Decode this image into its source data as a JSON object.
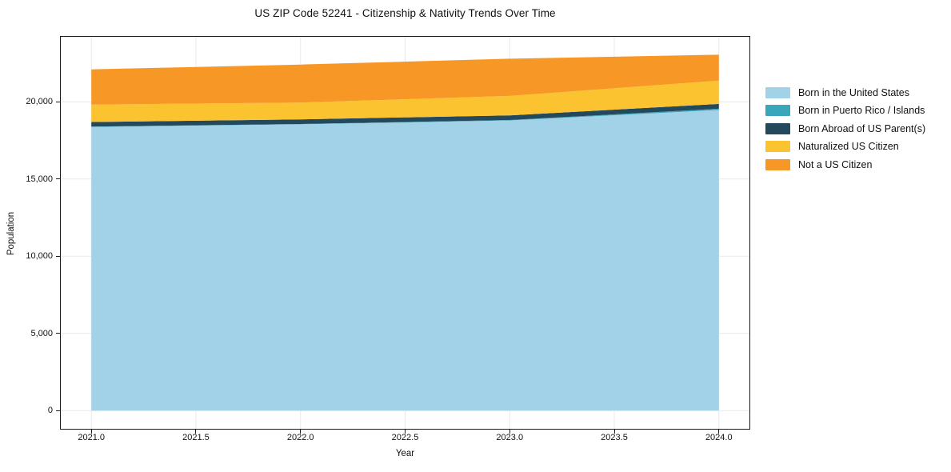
{
  "title": "US ZIP Code 52241 - Citizenship & Nativity Trends Over Time",
  "axes": {
    "x": {
      "label": "Year",
      "tick_labels": [
        "2021.0",
        "2021.5",
        "2022.0",
        "2022.5",
        "2023.0",
        "2023.5",
        "2024.0"
      ],
      "tick_values": [
        2021.0,
        2021.5,
        2022.0,
        2022.5,
        2023.0,
        2023.5,
        2024.0
      ]
    },
    "y": {
      "label": "Population",
      "tick_labels": [
        "0",
        "5,000",
        "10,000",
        "15,000",
        "20,000"
      ],
      "tick_values": [
        0,
        5000,
        10000,
        15000,
        20000
      ]
    }
  },
  "legend": {
    "items": [
      {
        "label": "Born in the United States",
        "color": "#a2d2e8"
      },
      {
        "label": "Born in Puerto Rico / Islands",
        "color": "#39a6bc"
      },
      {
        "label": "Born Abroad of US Parent(s)",
        "color": "#24485c"
      },
      {
        "label": "Naturalized US Citizen",
        "color": "#fcc331"
      },
      {
        "label": "Not a US Citizen",
        "color": "#f79726"
      }
    ]
  },
  "colors": {
    "grid": "#e9e9e9",
    "spine": "#1a1a1a",
    "background": "#ffffff"
  },
  "chart_data": {
    "type": "area",
    "stacked": true,
    "title": "US ZIP Code 52241 - Citizenship & Nativity Trends Over Time",
    "xlabel": "Year",
    "ylabel": "Population",
    "x": [
      2021,
      2022,
      2023,
      2024
    ],
    "series": [
      {
        "name": "Born in the United States",
        "color": "#a2d2e8",
        "values": [
          18370,
          18540,
          18790,
          19470
        ]
      },
      {
        "name": "Born in Puerto Rico / Islands",
        "color": "#39a6bc",
        "values": [
          20,
          20,
          30,
          80
        ]
      },
      {
        "name": "Born Abroad of US Parent(s)",
        "color": "#24485c",
        "values": [
          300,
          300,
          300,
          310
        ]
      },
      {
        "name": "Naturalized US Citizen",
        "color": "#fcc331",
        "values": [
          1130,
          1090,
          1260,
          1510
        ]
      },
      {
        "name": "Not a US Citizen",
        "color": "#f79726",
        "values": [
          2280,
          2460,
          2410,
          1680
        ]
      }
    ],
    "totals": [
      22100,
      22410,
      22790,
      23050
    ],
    "xlim": [
      2020.85,
      2024.15
    ],
    "ylim": [
      -1230,
      24260
    ],
    "grid": true,
    "legend_position": "right-outside"
  }
}
